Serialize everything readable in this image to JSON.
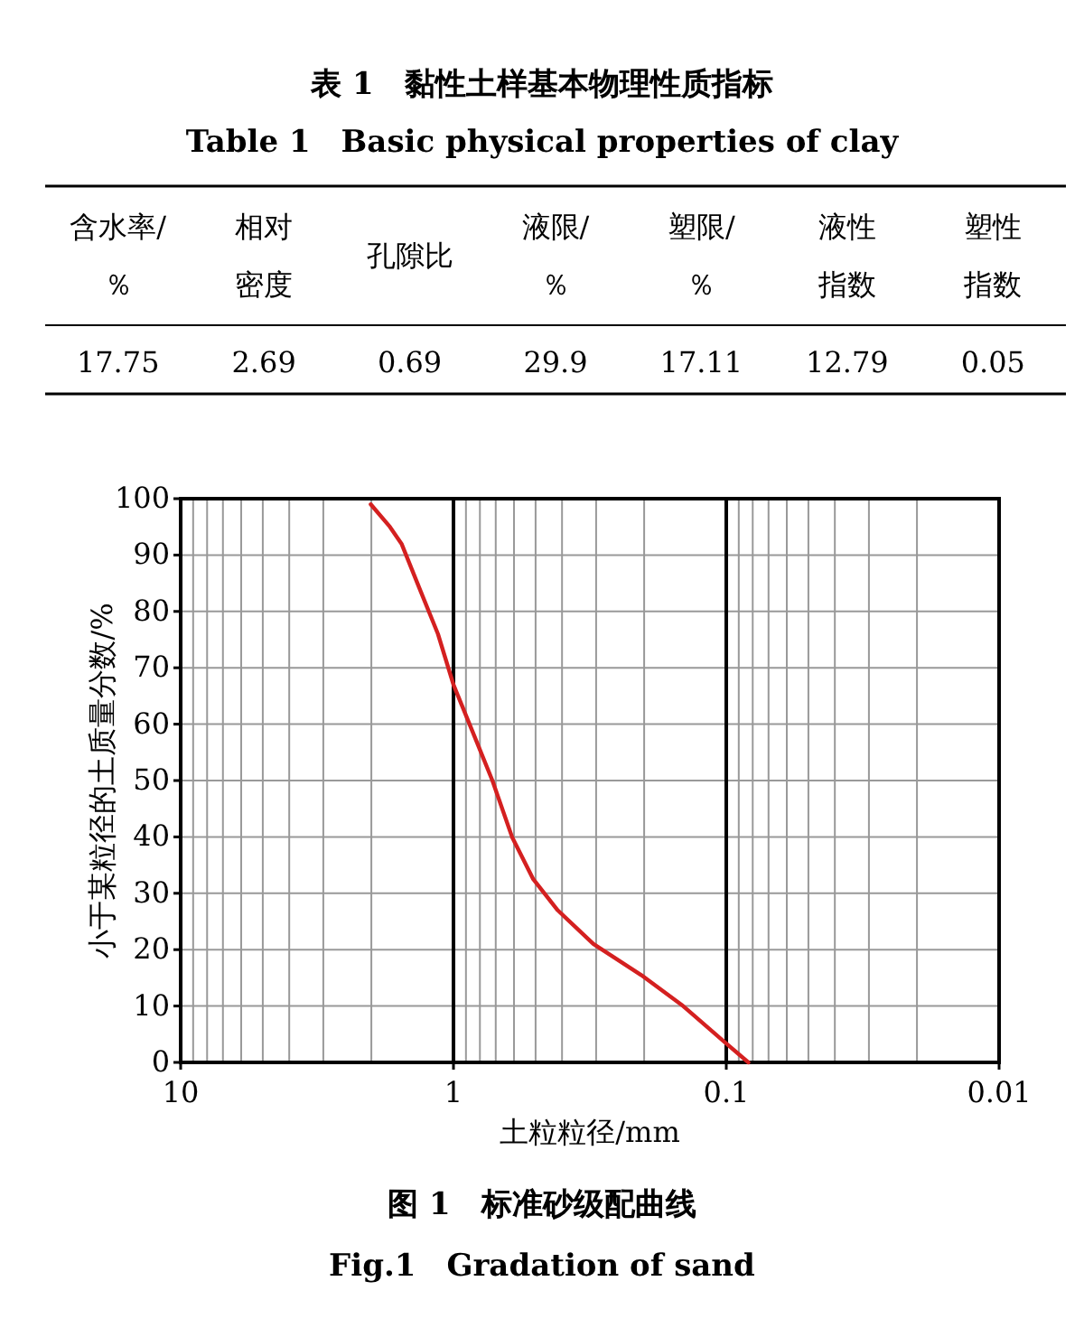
{
  "chart_data": [
    {
      "type": "other",
      "title": "表 1　黏性土样基本物理性质指标",
      "subtitle": "Table 1　Basic physical properties of clay",
      "categories": [
        "含水率/\n％",
        "相对密度",
        "孔隙比",
        "液限/\n％",
        "塑限/\n％",
        "液性指数",
        "塑性指数"
      ],
      "values": [
        17.75,
        2.69,
        0.69,
        29.9,
        17.11,
        12.79,
        0.05
      ],
      "data_labels": true
    },
    {
      "type": "line",
      "title": "图 1　标准砂级配曲线",
      "subtitle": "Fig.1　Gradation of sand",
      "xlabel": "土粒粒径/mm",
      "ylabel": "小于某粒径的土质量分数/%",
      "x": [
        2.01,
        1.71,
        1.55,
        1.33,
        1.14,
        1.0,
        0.84,
        0.72,
        0.61,
        0.51,
        0.415,
        0.307,
        0.205,
        0.144,
        0.102,
        0.083
      ],
      "series": [
        {
          "color": "#d42020",
          "values": [
            99,
            95,
            92,
            84,
            76,
            67,
            58,
            50,
            40,
            32.5,
            27,
            21,
            15.5,
            10,
            3.7,
            0
          ]
        }
      ],
      "log": "x",
      "xlim": [
        10,
        0.01
      ],
      "xticks": [
        10,
        1,
        0.1,
        0.01
      ],
      "ylim": [
        0,
        100
      ],
      "yticks": [
        0,
        10,
        20,
        30,
        40,
        50,
        60,
        70,
        80,
        90,
        100
      ],
      "grid": true
    }
  ]
}
